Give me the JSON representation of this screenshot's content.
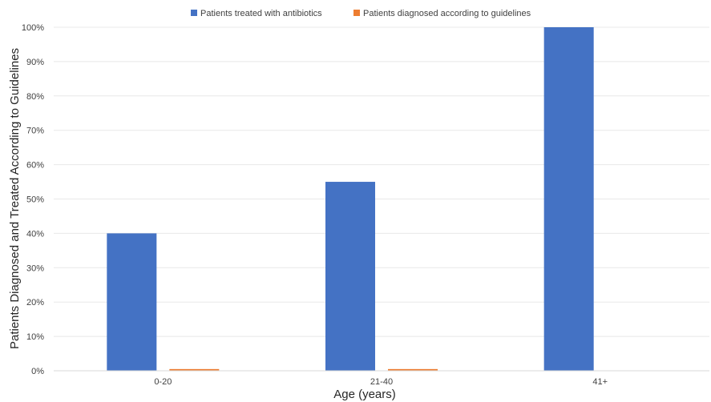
{
  "chart_data": {
    "type": "bar",
    "categories": [
      "0-20",
      "21-40",
      "41+"
    ],
    "series": [
      {
        "name": "Patients treated with antibiotics",
        "values": [
          40,
          55,
          100
        ],
        "color": "#4472C4"
      },
      {
        "name": "Patients diagnosed according to guidelines",
        "values": [
          0.5,
          0.5,
          0
        ],
        "color": "#ED7D31"
      }
    ],
    "xlabel": "Age (years)",
    "ylabel": "Patients Diagnosed and Treated According to Guidelines",
    "ylim": [
      0,
      100
    ],
    "yticks": [
      "0%",
      "10%",
      "20%",
      "30%",
      "40%",
      "50%",
      "60%",
      "70%",
      "80%",
      "90%",
      "100%"
    ],
    "grid": true,
    "legend_position": "top"
  }
}
